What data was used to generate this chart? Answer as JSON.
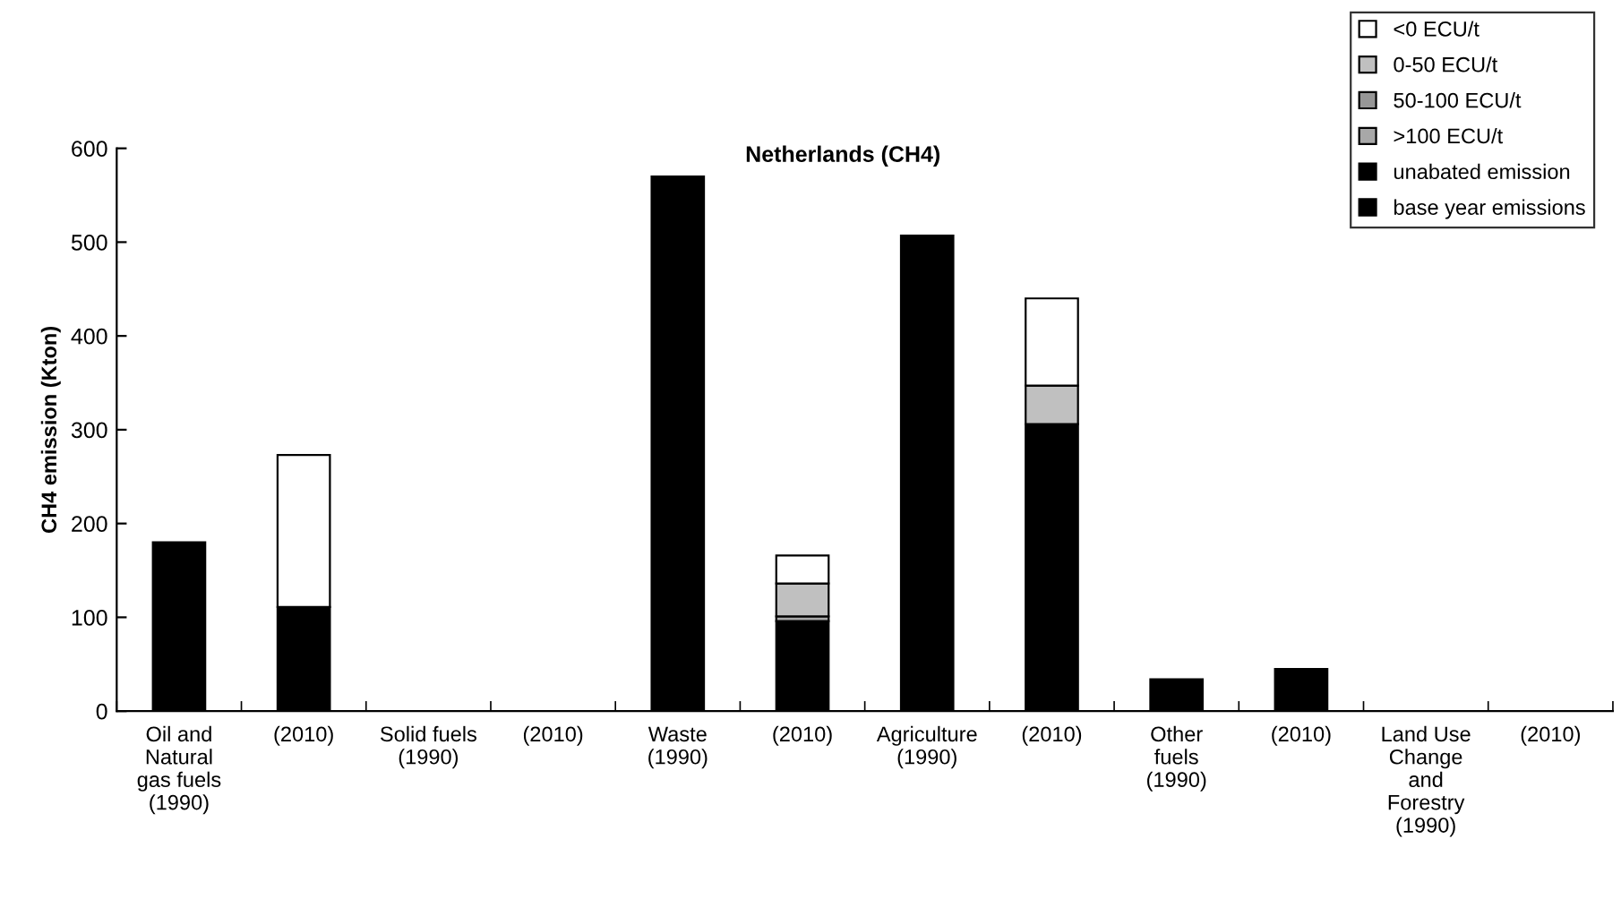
{
  "chart_data": {
    "type": "bar",
    "title": "Netherlands (CH4)",
    "ylabel": "CH4 emission (Kton)",
    "stacked": true,
    "categories": [
      "Oil and\nNatural\ngas fuels\n(1990)",
      "(2010)",
      "Solid fuels\n(1990)",
      "(2010)",
      "Waste\n(1990)",
      "(2010)",
      "Agriculture\n(1990)",
      "(2010)",
      "Other\nfuels\n(1990)",
      "(2010)",
      "Land Use\nChange\nand\nForestry\n(1990)",
      "(2010)"
    ],
    "series": [
      {
        "name": "base year emissions",
        "color": "#000000",
        "values": [
          180,
          null,
          null,
          null,
          570,
          null,
          507,
          null,
          34,
          null,
          null,
          null
        ]
      },
      {
        "name": "unabated emission",
        "color": "#000000",
        "values": [
          null,
          111,
          null,
          null,
          null,
          96,
          null,
          306,
          null,
          45,
          null,
          null
        ]
      },
      {
        "name": ">100 ECU/t",
        "color": "#a8a8a8",
        "values": [
          null,
          null,
          null,
          null,
          null,
          5,
          null,
          null,
          null,
          null,
          null,
          null
        ]
      },
      {
        "name": "50-100 ECU/t",
        "color": "#969696",
        "values": [
          null,
          null,
          null,
          null,
          null,
          null,
          null,
          null,
          null,
          null,
          null,
          null
        ]
      },
      {
        "name": "0-50 ECU/t",
        "color": "#c0c0c0",
        "values": [
          null,
          null,
          null,
          null,
          null,
          35,
          null,
          41,
          null,
          null,
          null,
          null
        ]
      },
      {
        "name": "<0 ECU/t",
        "color": "#ffffff",
        "values": [
          null,
          162,
          null,
          null,
          null,
          30,
          null,
          93,
          null,
          null,
          null,
          null
        ]
      }
    ],
    "ylim": [
      0,
      600
    ],
    "yticks": [
      0,
      100,
      200,
      300,
      400,
      500,
      600
    ],
    "grid": false,
    "legend": "top right"
  }
}
